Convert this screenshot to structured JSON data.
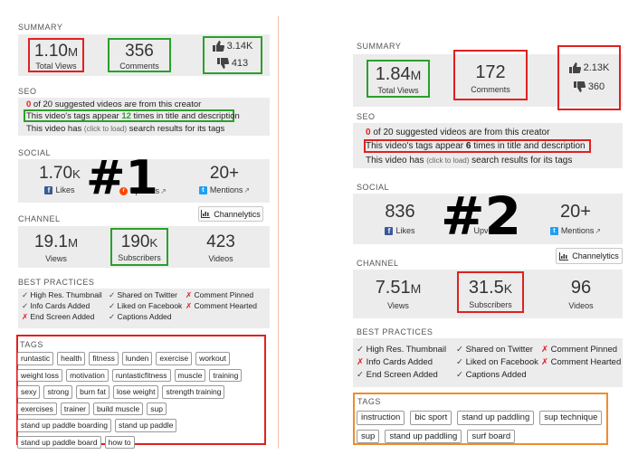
{
  "p1": {
    "summary_title": "SUMMARY",
    "views": {
      "value": "1.10",
      "unit": "M",
      "label": "Total Views"
    },
    "comments": {
      "value": "356",
      "label": "Comments"
    },
    "likes": "3.14K",
    "dislikes": "413",
    "seo_title": "SEO",
    "seo": {
      "l1_num": "0",
      "l1_text": " of 20 suggested videos are from this creator",
      "l2_pre": "This video's tags appear ",
      "l2_num": "12",
      "l2_post": " times in title and description",
      "l3_pre": "This video has ",
      "l3_small": "(click to load)",
      "l3_post": " search results for its tags"
    },
    "social_title": "SOCIAL",
    "social": {
      "likes_value": "1.70",
      "likes_unit": "K",
      "likes_label": "Likes",
      "upvotes_label": "Upvotes",
      "mentions_value": "20+",
      "mentions_label": "Mentions"
    },
    "channel_title": "CHANNEL",
    "channelytics": "Channelytics",
    "channel": {
      "views_value": "19.1",
      "views_unit": "M",
      "views_label": "Views",
      "subs_value": "190",
      "subs_unit": "K",
      "subs_label": "Subscribers",
      "videos_value": "423",
      "videos_label": "Videos"
    },
    "bp_title": "BEST PRACTICES",
    "bp": {
      "c1": [
        "High Res. Thumbnail",
        "Info Cards Added",
        "End Screen Added"
      ],
      "c1_state": [
        "ok",
        "ok",
        "x"
      ],
      "c2": [
        "Shared on Twitter",
        "Liked on Facebook",
        "Captions Added"
      ],
      "c2_state": [
        "ok",
        "ok",
        "ok"
      ],
      "c3": [
        "Comment Pinned",
        "Comment Hearted"
      ],
      "c3_state": [
        "x",
        "x"
      ]
    },
    "tags_title": "TAGS",
    "tags": [
      "runtastic",
      "health",
      "fitness",
      "lunden",
      "exercise",
      "workout",
      "weight loss",
      "motivation",
      "runtasticfitness",
      "muscle",
      "training",
      "sexy",
      "strong",
      "burn fat",
      "lose weight",
      "strength training",
      "exercises",
      "trainer",
      "build muscle",
      "sup",
      "stand up paddle boarding",
      "stand up paddle",
      "stand up paddle board",
      "how to"
    ],
    "badge": "#1"
  },
  "p2": {
    "summary_title": "SUMMARY",
    "views": {
      "value": "1.84",
      "unit": "M",
      "label": "Total Views"
    },
    "comments": {
      "value": "172",
      "label": "Comments"
    },
    "likes": "2.13K",
    "dislikes": "360",
    "seo_title": "SEO",
    "seo": {
      "l1_num": "0",
      "l1_text": " of 20 suggested videos are from this creator",
      "l2_pre": "This video's tags appear ",
      "l2_num": "6",
      "l2_post": " times in title and description",
      "l3_pre": "This video has ",
      "l3_small": "(click to load)",
      "l3_post": " search results for its tags"
    },
    "social_title": "SOCIAL",
    "social": {
      "likes_value": "836",
      "likes_label": "Likes",
      "upvotes_label": "Upvotes",
      "mentions_value": "20+",
      "mentions_label": "Mentions"
    },
    "channel_title": "CHANNEL",
    "channelytics": "Channelytics",
    "channel": {
      "views_value": "7.51",
      "views_unit": "M",
      "views_label": "Views",
      "subs_value": "31.5",
      "subs_unit": "K",
      "subs_label": "Subscribers",
      "videos_value": "96",
      "videos_label": "Videos"
    },
    "bp_title": "BEST PRACTICES",
    "bp": {
      "c1": [
        "High Res. Thumbnail",
        "Info Cards Added",
        "End Screen Added"
      ],
      "c1_state": [
        "ok",
        "x",
        "ok"
      ],
      "c2": [
        "Shared on Twitter",
        "Liked on Facebook",
        "Captions Added"
      ],
      "c2_state": [
        "ok",
        "ok",
        "ok"
      ],
      "c3": [
        "Comment Pinned",
        "Comment Hearted"
      ],
      "c3_state": [
        "x",
        "x"
      ]
    },
    "tags_title": "TAGS",
    "tags": [
      "instruction",
      "bic sport",
      "stand up paddling",
      "sup technique",
      "sup",
      "stand up paddling",
      "surf board"
    ],
    "badge": "#2"
  },
  "colors": {
    "highlight_red": "#e02020",
    "highlight_green": "#2aa02a",
    "highlight_orange": "#f08c2a",
    "facebook": "#3b5998",
    "twitter": "#1da1f2",
    "reddit": "#ff4500"
  },
  "icons": [
    "thumbs-up-icon",
    "thumbs-down-icon",
    "facebook-icon",
    "reddit-icon",
    "twitter-icon",
    "external-link-icon",
    "bar-chart-icon",
    "check-icon",
    "cross-icon"
  ]
}
